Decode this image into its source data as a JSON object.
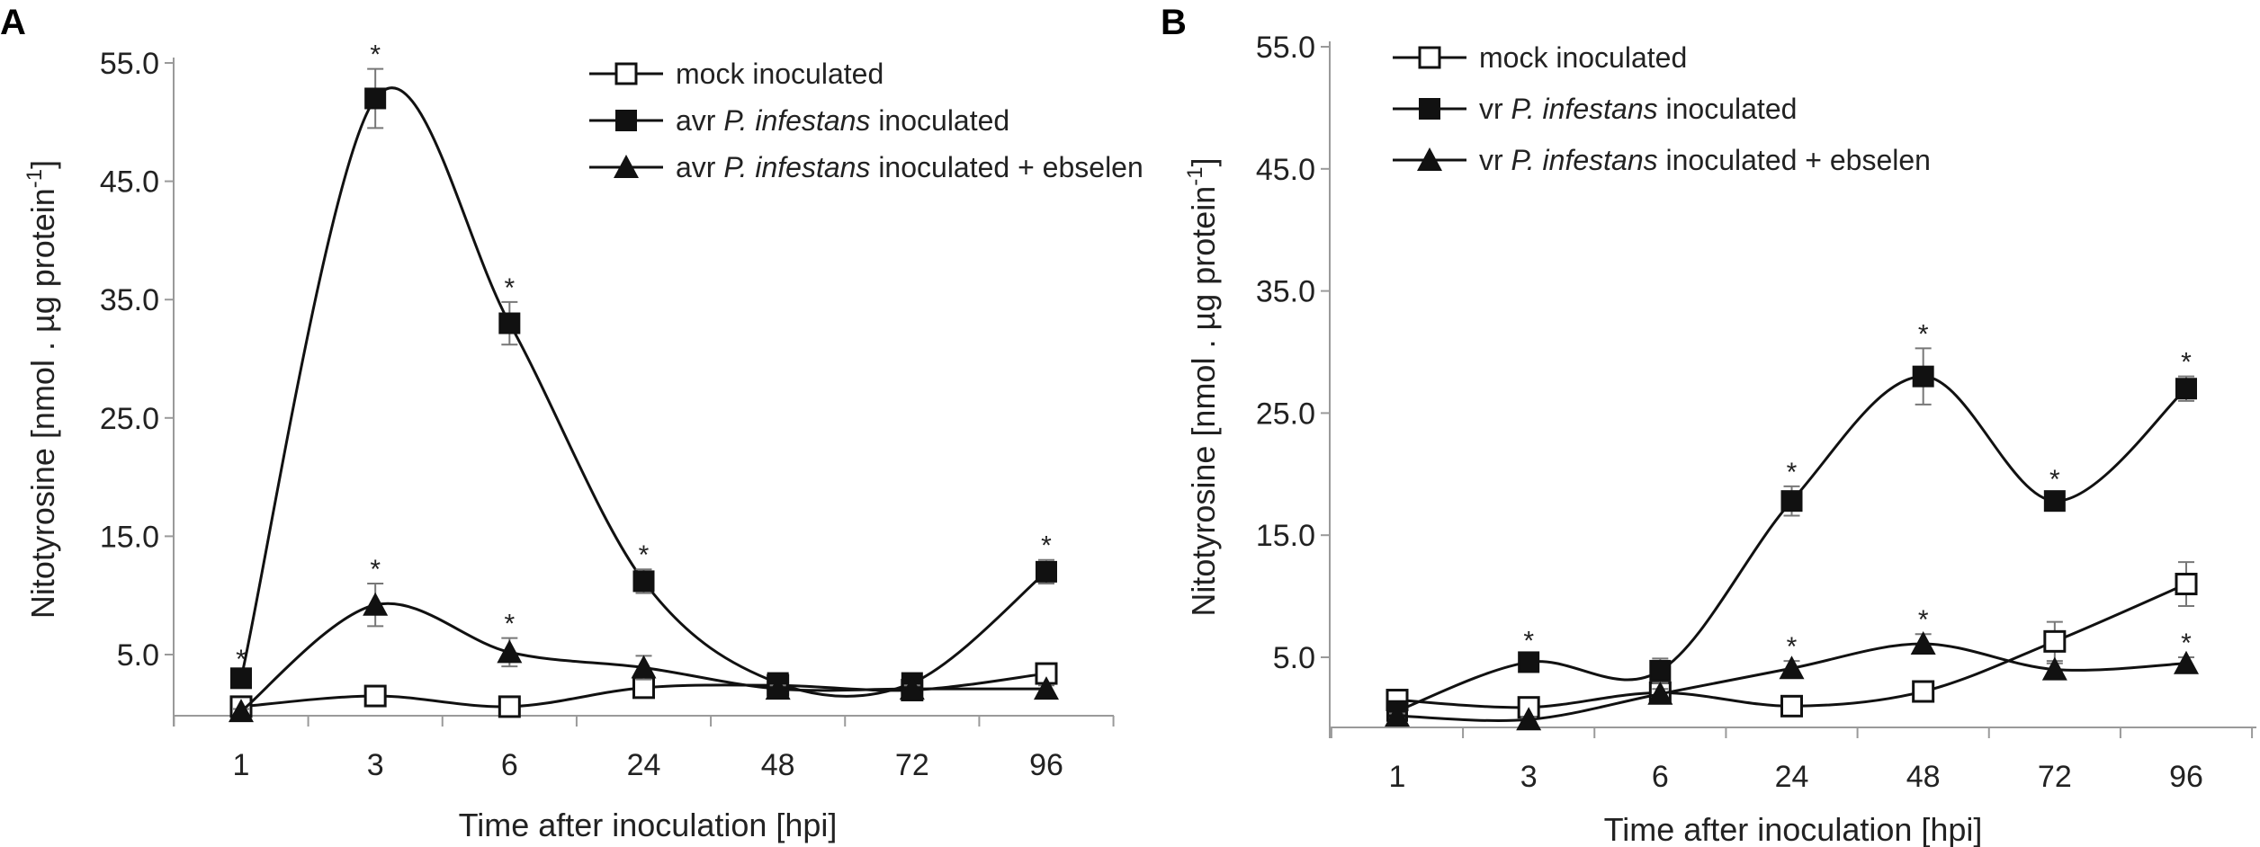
{
  "chart_data": [
    {
      "panel": "A",
      "type": "line",
      "title": "",
      "xlabel": "Time after inoculation [hpi]",
      "ylabel_main": "Nitotyrosine [nmol . µg protein",
      "ylabel_sup": "-1",
      "ylabel_end": "]",
      "categories": [
        "1",
        "3",
        "6",
        "24",
        "48",
        "72",
        "96"
      ],
      "yticks": [
        "5.0",
        "15.0",
        "25.0",
        "35.0",
        "45.0",
        "55.0"
      ],
      "ylim": [
        0,
        55
      ],
      "legend_position": "top-right",
      "series": [
        {
          "name": "mock inoculated",
          "legend_parts": [
            {
              "text": "mock inoculated",
              "italic": false
            }
          ],
          "marker": "open-square",
          "values": [
            0.6,
            1.5,
            0.6,
            2.2,
            2.4,
            2.0,
            3.4
          ],
          "errors": [
            0.3,
            0.3,
            0.3,
            0.4,
            0.4,
            0.4,
            0.7
          ],
          "sig": [
            false,
            false,
            false,
            false,
            false,
            false,
            false
          ]
        },
        {
          "name": "avr P. infestans inoculated",
          "legend_parts": [
            {
              "text": "avr ",
              "italic": false
            },
            {
              "text": "P. infestans",
              "italic": true
            },
            {
              "text": " inoculated",
              "italic": false
            }
          ],
          "marker": "filled-square",
          "values": [
            3.0,
            52.0,
            33.0,
            11.2,
            2.6,
            2.6,
            12.0
          ],
          "errors": [
            0.4,
            2.5,
            1.8,
            1.0,
            0.4,
            0.4,
            1.0
          ],
          "sig": [
            true,
            true,
            true,
            true,
            false,
            false,
            true
          ]
        },
        {
          "name": "avr P. infestans inoculated + ebselen",
          "legend_parts": [
            {
              "text": "avr ",
              "italic": false
            },
            {
              "text": "P. infestans",
              "italic": true
            },
            {
              "text": " inoculated + ebselen",
              "italic": false
            }
          ],
          "marker": "filled-triangle",
          "values": [
            0.2,
            9.2,
            5.2,
            3.9,
            2.1,
            2.1,
            2.1
          ],
          "errors": [
            0.2,
            1.8,
            1.2,
            1.0,
            0.3,
            0.3,
            0.3
          ],
          "sig": [
            false,
            true,
            true,
            false,
            false,
            false,
            false
          ]
        }
      ]
    },
    {
      "panel": "B",
      "type": "line",
      "title": "",
      "xlabel": "Time after inoculation [hpi]",
      "ylabel_main": "Nitotyrosine [nmol . µg protein",
      "ylabel_sup": "-1",
      "ylabel_end": "]",
      "categories": [
        "1",
        "3",
        "6",
        "24",
        "48",
        "72",
        "96"
      ],
      "yticks": [
        "5.0",
        "15.0",
        "25.0",
        "35.0",
        "45.0",
        "55.0"
      ],
      "ylim": [
        0,
        55
      ],
      "legend_position": "top-left",
      "series": [
        {
          "name": "mock inoculated",
          "legend_parts": [
            {
              "text": "mock inoculated",
              "italic": false
            }
          ],
          "marker": "open-square",
          "values": [
            1.5,
            0.9,
            2.1,
            1.0,
            2.2,
            6.3,
            11.0
          ],
          "errors": [
            0.3,
            0.3,
            0.4,
            0.3,
            0.4,
            1.6,
            1.8
          ],
          "sig": [
            false,
            false,
            false,
            false,
            false,
            false,
            false
          ]
        },
        {
          "name": "vr P. infestans inoculated",
          "legend_parts": [
            {
              "text": "vr ",
              "italic": false
            },
            {
              "text": "P. infestans",
              "italic": true
            },
            {
              "text": " inoculated",
              "italic": false
            }
          ],
          "marker": "filled-square",
          "values": [
            0.6,
            4.6,
            3.9,
            17.8,
            28.0,
            17.8,
            27.0
          ],
          "errors": [
            0.3,
            0.6,
            1.0,
            1.2,
            2.3,
            0.6,
            1.0
          ],
          "sig": [
            false,
            true,
            false,
            true,
            true,
            true,
            true
          ]
        },
        {
          "name": "vr P. infestans inoculated + ebselen",
          "legend_parts": [
            {
              "text": "vr ",
              "italic": false
            },
            {
              "text": "P. infestans",
              "italic": true
            },
            {
              "text": " inoculated + ebselen",
              "italic": false
            }
          ],
          "marker": "filled-triangle",
          "values": [
            0.2,
            -0.1,
            2.0,
            4.1,
            6.1,
            4.0,
            4.5
          ],
          "errors": [
            0.2,
            0.2,
            0.4,
            0.6,
            0.8,
            0.5,
            0.5
          ],
          "sig": [
            false,
            false,
            false,
            true,
            true,
            false,
            true
          ]
        }
      ]
    }
  ]
}
